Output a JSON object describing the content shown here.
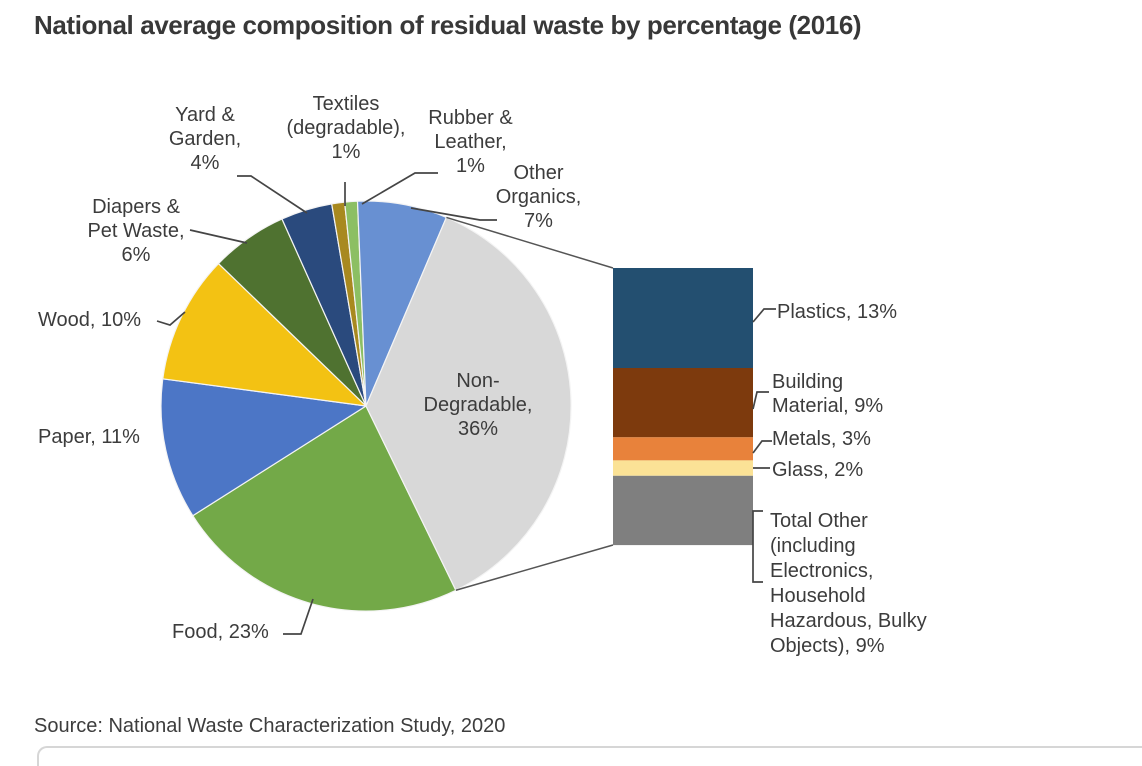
{
  "chart_data": {
    "type": "pie-of-bar",
    "title": "National average composition of residual waste by percentage (2016)",
    "source": "Source: National Waste Characterization Study, 2020",
    "units": "percent",
    "legend": "none (direct data labels with leader lines)",
    "pie": {
      "start_angle_deg": 154,
      "slices": [
        {
          "label": "Food",
          "value": 23,
          "display": "Food, 23%",
          "color": "#73A948"
        },
        {
          "label": "Paper",
          "value": 11,
          "display": "Paper, 11%",
          "color": "#4C76C6"
        },
        {
          "label": "Wood",
          "value": 10,
          "display": "Wood, 10%",
          "color": "#F3C213"
        },
        {
          "label": "Diapers & Pet Waste",
          "value": 6,
          "display": "Diapers & Pet Waste, 6%",
          "color": "#4F7230"
        },
        {
          "label": "Yard & Garden",
          "value": 4,
          "display": "Yard & Garden, 4%",
          "color": "#2A4A7D"
        },
        {
          "label": "Textiles (degradable)",
          "value": 1,
          "display": "Textiles (degradable), 1%",
          "color": "#A8891F"
        },
        {
          "label": "Rubber & Leather",
          "value": 1,
          "display": "Rubber & Leather, 1%",
          "color": "#8CBF63"
        },
        {
          "label": "Other Organics",
          "value": 7,
          "display": "Other Organics, 7%",
          "color": "#6890D2"
        },
        {
          "label": "Non-Degradable",
          "value": 36,
          "display": "Non-Degradable, 36%",
          "color": "#D8D8D8",
          "is_breakout": true
        }
      ]
    },
    "bar": {
      "represents": "Non-Degradable",
      "segments_top_to_bottom": [
        {
          "label": "Plastics",
          "value": 13,
          "display": "Plastics, 13%",
          "color": "#234F70"
        },
        {
          "label": "Building Material",
          "value": 9,
          "display": "Building Material, 9%",
          "color": "#7D3A0D"
        },
        {
          "label": "Metals",
          "value": 3,
          "display": "Metals, 3%",
          "color": "#E8823B"
        },
        {
          "label": "Glass",
          "value": 2,
          "display": "Glass, 2%",
          "color": "#FBE296"
        },
        {
          "label": "Total Other (including Electronics, Household Hazardous, Bulky Objects)",
          "value": 9,
          "display": "Total Other (including Electronics, Household Hazardous, Bulky Objects), 9%",
          "color": "#7F7F7F"
        }
      ]
    }
  }
}
